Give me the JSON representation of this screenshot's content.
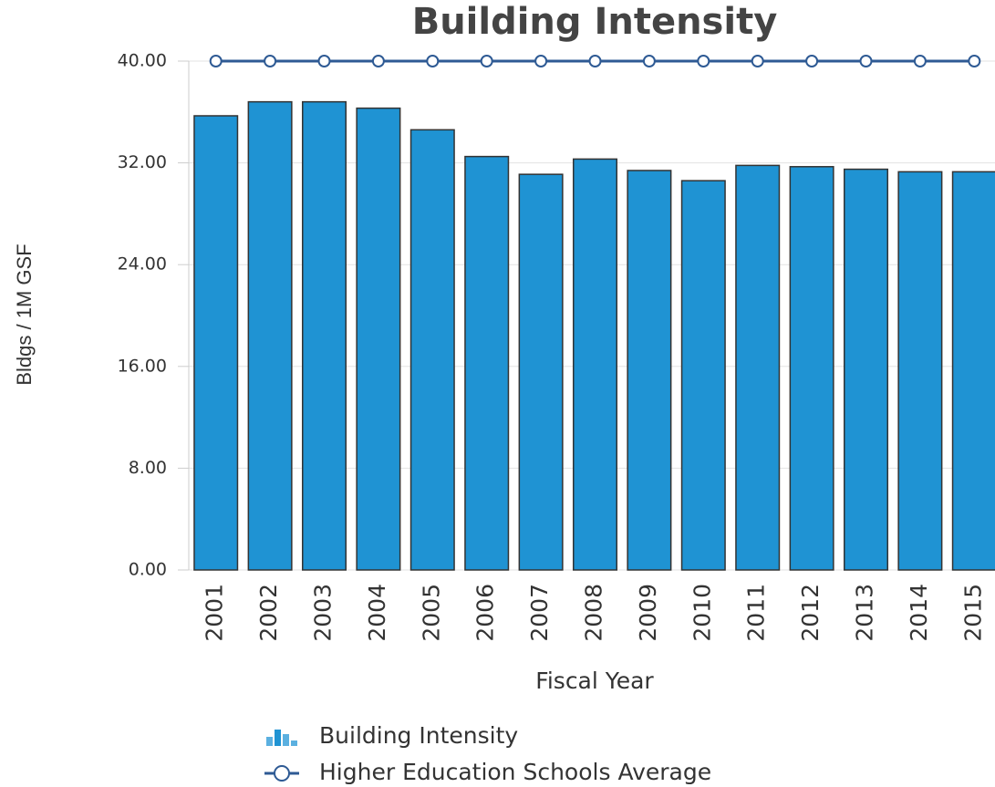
{
  "chart_data": {
    "type": "bar",
    "title": "Building Intensity",
    "x_label": "Fiscal Year",
    "y_label": "Bldgs / 1M GSF",
    "categories": [
      "2001",
      "2002",
      "2003",
      "2004",
      "2005",
      "2006",
      "2007",
      "2008",
      "2009",
      "2010",
      "2011",
      "2012",
      "2013",
      "2014",
      "2015"
    ],
    "series": [
      {
        "name": "Building Intensity",
        "type": "bar",
        "color": "#1f93d3",
        "values": [
          35.7,
          36.8,
          36.8,
          36.3,
          34.6,
          32.5,
          31.1,
          32.3,
          31.4,
          30.6,
          31.8,
          31.7,
          31.5,
          31.3,
          31.3
        ]
      },
      {
        "name": "Higher Education Schools Average",
        "type": "line",
        "color": "#2e5a94",
        "values": [
          40,
          40,
          40,
          40,
          40,
          40,
          40,
          40,
          40,
          40,
          40,
          40,
          40,
          40,
          40
        ]
      }
    ],
    "ylim": [
      0,
      40
    ],
    "yticks": [
      {
        "value": 0,
        "label": "0.00"
      },
      {
        "value": 8,
        "label": "8.00"
      },
      {
        "value": 16,
        "label": "16.00"
      },
      {
        "value": 24,
        "label": "24.00"
      },
      {
        "value": 32,
        "label": "32.00"
      },
      {
        "value": 40,
        "label": "40.00"
      }
    ],
    "grid": true
  }
}
